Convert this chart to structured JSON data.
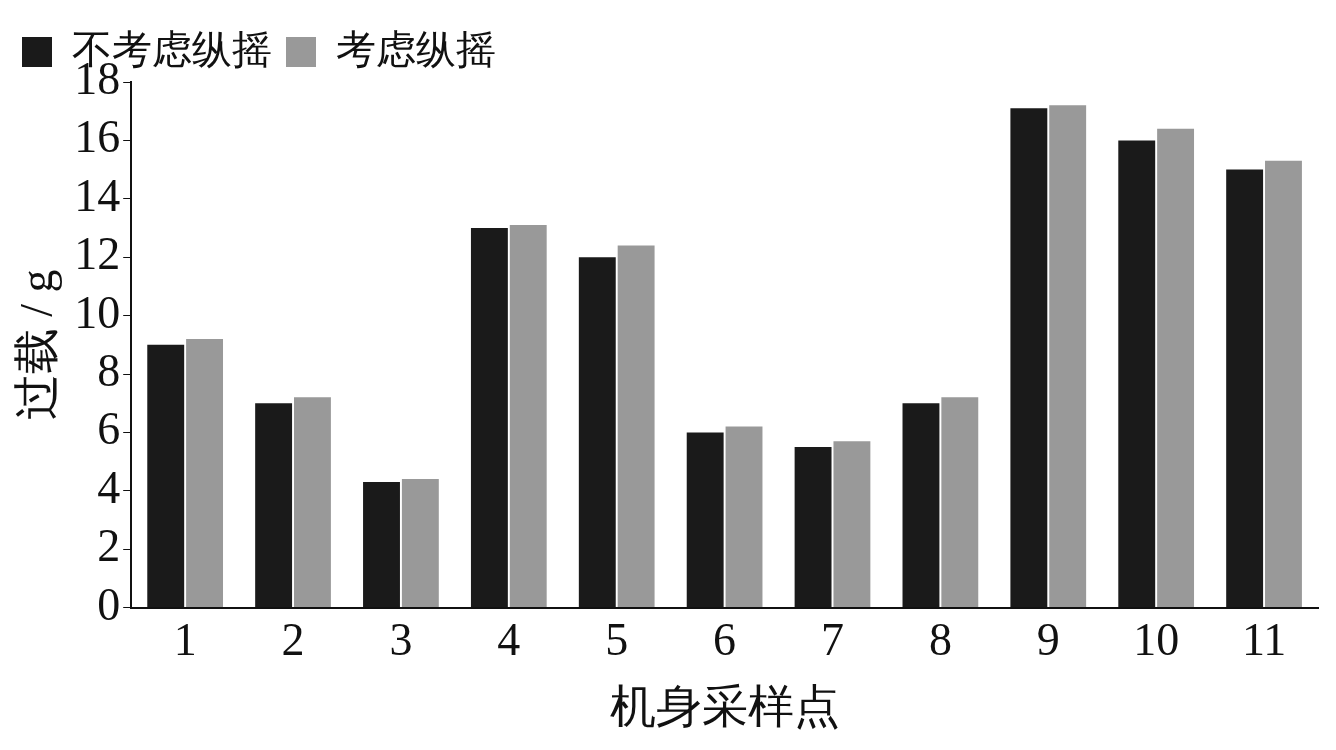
{
  "chart_data": {
    "type": "bar",
    "xlabel": "机身采样点",
    "ylabel": "过载 / g",
    "categories": [
      "1",
      "2",
      "3",
      "4",
      "5",
      "6",
      "7",
      "8",
      "9",
      "10",
      "11"
    ],
    "series": [
      {
        "name": "不考虑纵摇",
        "color": "#1a1a1a",
        "values": [
          9.0,
          7.0,
          4.3,
          13.0,
          12.0,
          6.0,
          5.5,
          7.0,
          17.1,
          16.0,
          15.0
        ]
      },
      {
        "name": "考虑纵摇",
        "color": "#999999",
        "values": [
          9.2,
          7.2,
          4.4,
          13.1,
          12.4,
          6.2,
          5.7,
          7.2,
          17.2,
          16.4,
          15.3
        ]
      }
    ],
    "ylim": [
      0,
      18
    ],
    "yticks": [
      0,
      2,
      4,
      6,
      8,
      10,
      12,
      14,
      16,
      18
    ],
    "grid": false,
    "legend": "top left"
  }
}
